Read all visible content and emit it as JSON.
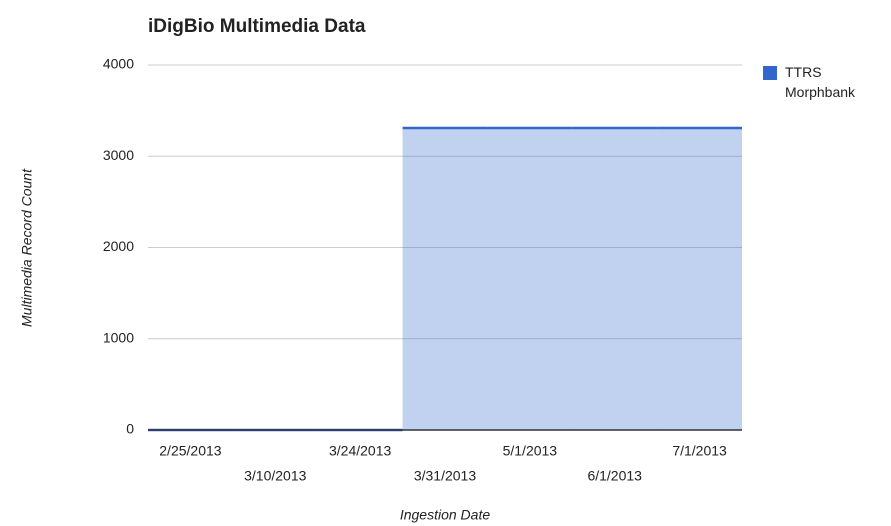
{
  "chart_data": {
    "type": "steppedArea",
    "title": "iDigBio Multimedia Data",
    "x_label": "Ingestion Date",
    "y_label": "Multimedia Record Count",
    "categories": [
      "2/25/2013",
      "3/10/2013",
      "3/24/2013",
      "3/31/2013",
      "5/1/2013",
      "6/1/2013",
      "7/1/2013"
    ],
    "series": [
      {
        "name": "TTRS Morphbank",
        "color": "#3366cc",
        "values": [
          0,
          0,
          0,
          3310,
          3310,
          3310,
          3310
        ]
      }
    ],
    "ylim": [
      0,
      4000
    ],
    "yticks": [
      0,
      1000,
      2000,
      3000,
      4000
    ],
    "grid": true,
    "legend": "right"
  }
}
